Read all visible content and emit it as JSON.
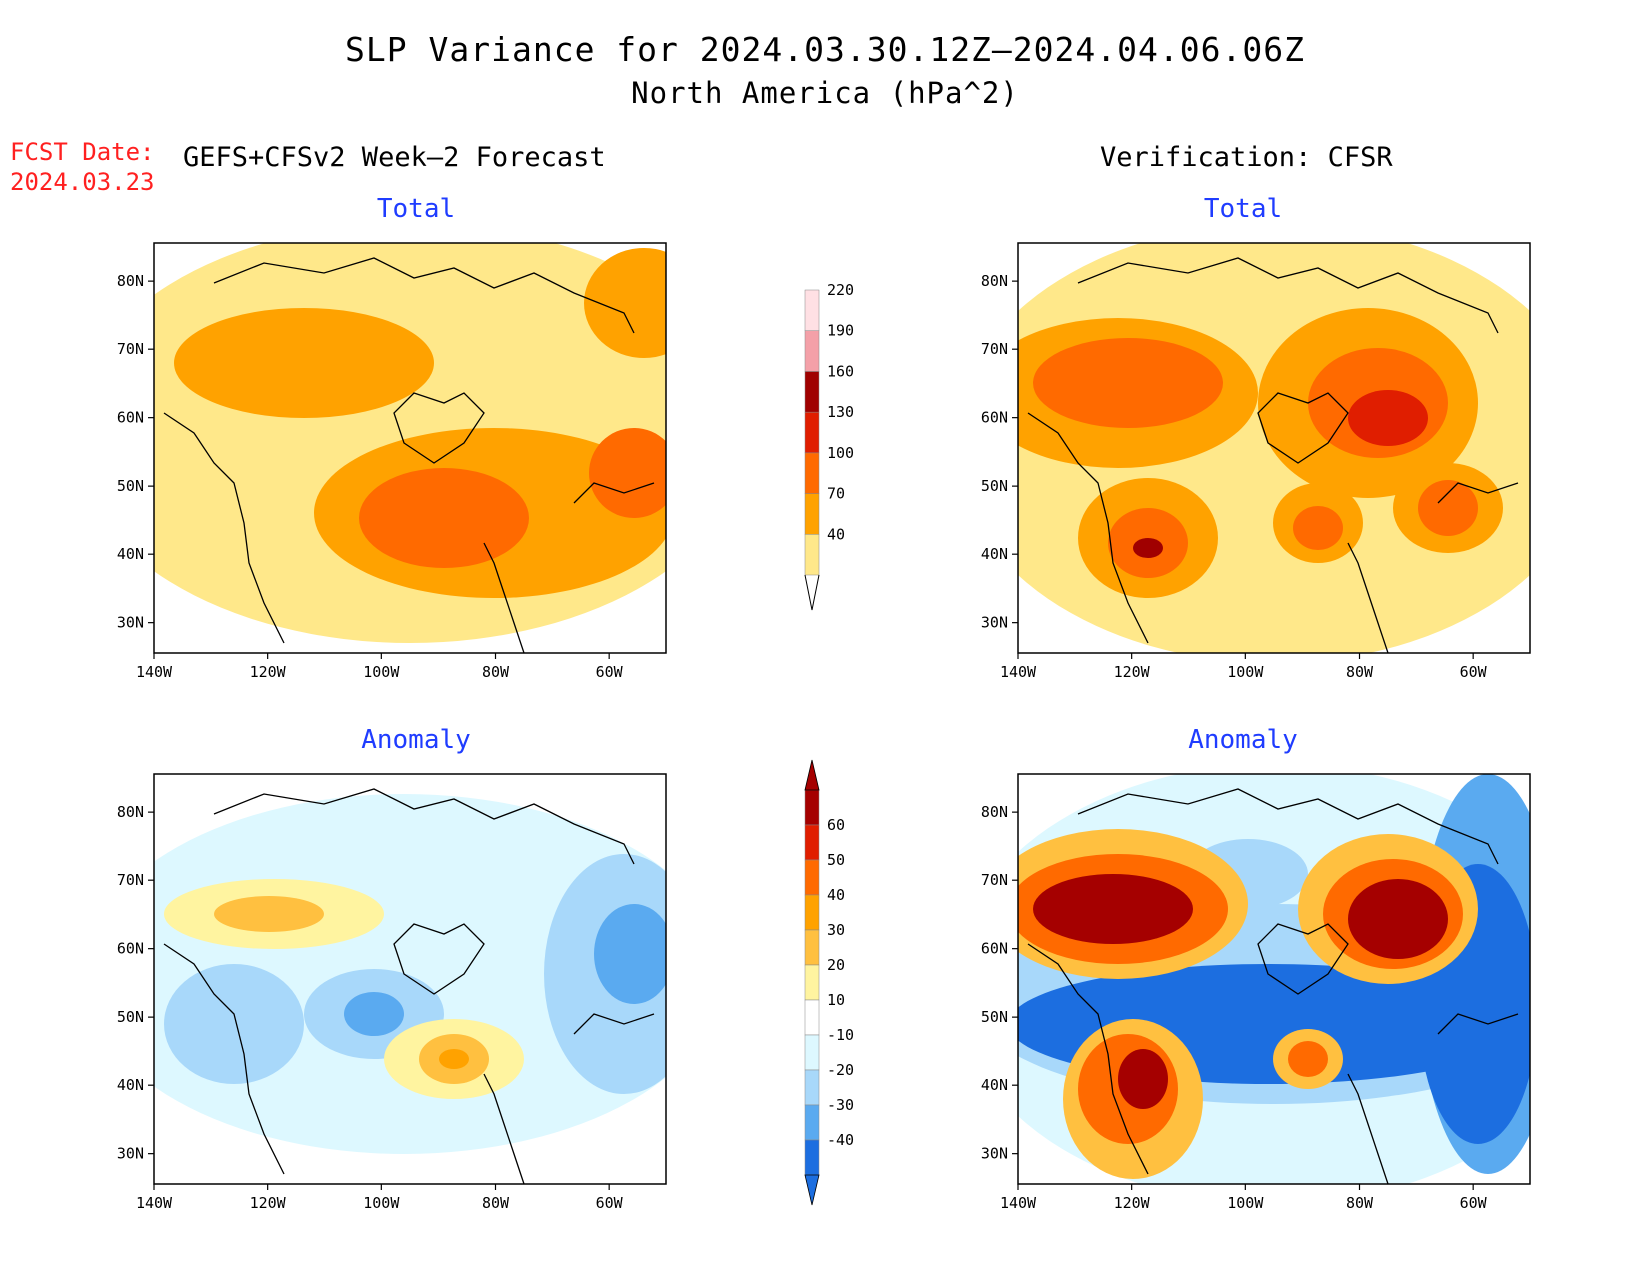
{
  "title": {
    "line1": "SLP Variance for 2024.03.30.12Z–2024.04.06.06Z",
    "line2": "North America (hPa^2)"
  },
  "forecast_date": {
    "label": "FCST Date:",
    "value": "2024.03.23"
  },
  "columns": {
    "left": "GEFS+CFSv2 Week–2 Forecast",
    "right": "Verification: CFSR"
  },
  "panels": [
    {
      "id": "fcst-total",
      "title": "Total"
    },
    {
      "id": "verif-total",
      "title": "Total"
    },
    {
      "id": "fcst-anomaly",
      "title": "Anomaly"
    },
    {
      "id": "verif-anomaly",
      "title": "Anomaly"
    }
  ],
  "axes": {
    "lon_ticks": [
      "140W",
      "120W",
      "100W",
      "80W",
      "60W"
    ],
    "lat_ticks": [
      "80N",
      "70N",
      "60N",
      "50N",
      "40N",
      "30N"
    ]
  },
  "colorbars": {
    "total": {
      "levels": [
        "40",
        "70",
        "100",
        "130",
        "160",
        "190",
        "220"
      ],
      "colors": [
        "#ffe88a",
        "#ffa200",
        "#ff6a00",
        "#e01e00",
        "#a00000",
        "#f4a0a8",
        "#ffe0e4"
      ]
    },
    "anomaly": {
      "levels": [
        "60",
        "50",
        "40",
        "30",
        "20",
        "10",
        "-10",
        "-20",
        "-30",
        "-40"
      ],
      "colors": [
        "#a50000",
        "#e01e00",
        "#ff6a00",
        "#ffa200",
        "#ffc040",
        "#fff4a0",
        "#ffffff",
        "#ddf8ff",
        "#a8d8fa",
        "#5aaaf0",
        "#1c6ee0"
      ]
    }
  },
  "map_colors": {
    "t_low": "#ffe88a",
    "t_mid": "#ffa200",
    "t_high": "#ff6a00",
    "t_vhigh": "#e01e00",
    "t_top": "#a00000",
    "a_pos1": "#fff4a0",
    "a_pos2": "#ffc040",
    "a_pos3": "#ffa200",
    "a_pos4": "#ff6a00",
    "a_pos5": "#e01e00",
    "a_pos6": "#a50000",
    "a_neg1": "#ddf8ff",
    "a_neg2": "#a8d8fa",
    "a_neg3": "#5aaaf0",
    "a_neg4": "#1c6ee0"
  }
}
